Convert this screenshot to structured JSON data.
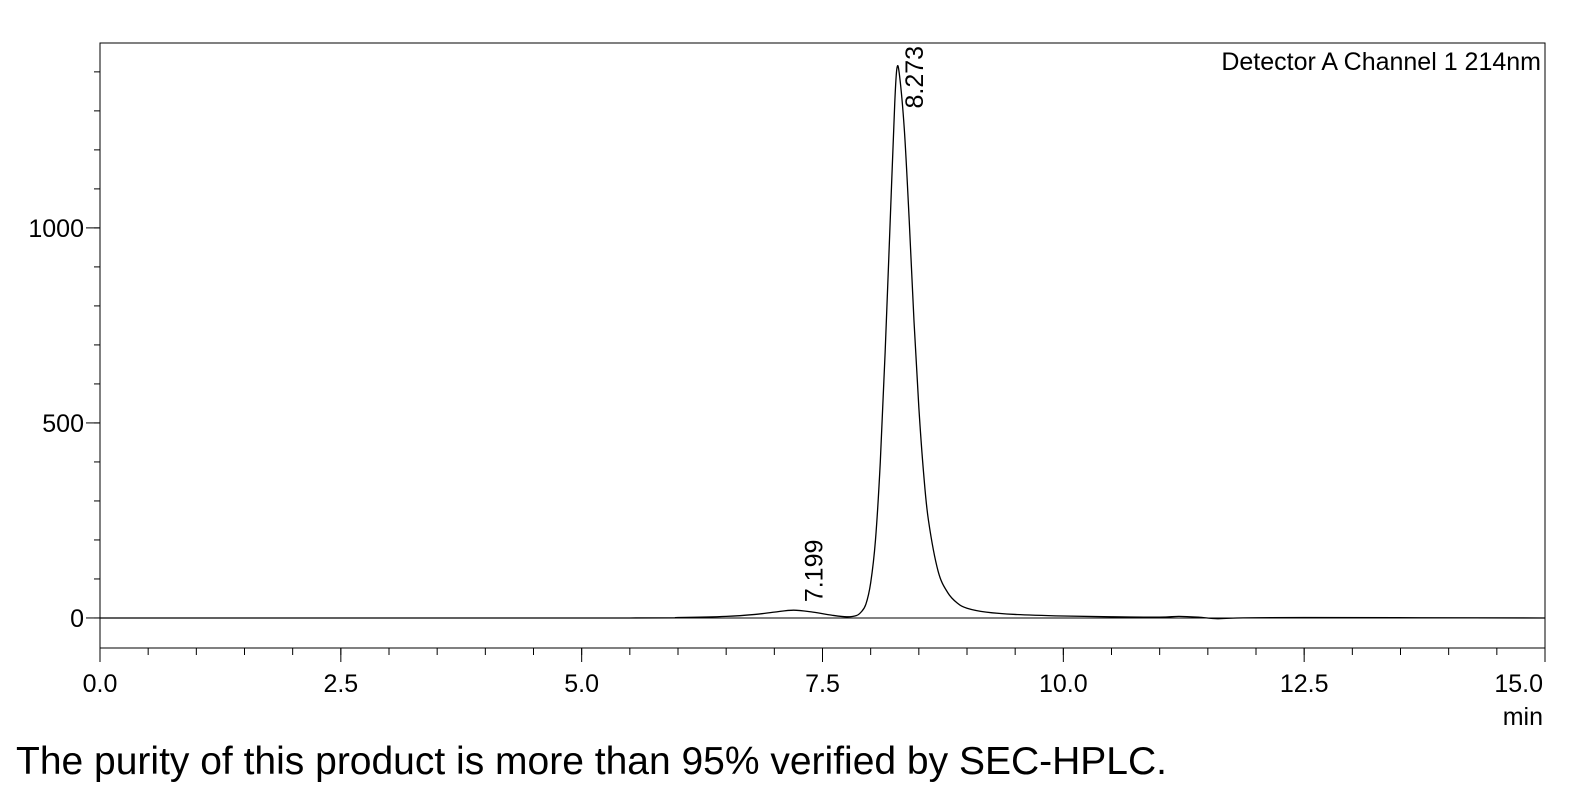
{
  "chart_data": {
    "type": "line",
    "title": "Detector A Channel 1 214nm",
    "xlabel": "min",
    "ylabel": "",
    "xlim": [
      0,
      15
    ],
    "ylim": [
      -77,
      1474
    ],
    "x_ticks": [
      "0.0",
      "2.5",
      "5.0",
      "7.5",
      "10.0",
      "12.5",
      "15.0"
    ],
    "x_tick_values": [
      0,
      2.5,
      5,
      7.5,
      10,
      12.5,
      15
    ],
    "x_minor_step": 0.5,
    "y_ticks": [
      "0",
      "500",
      "1000"
    ],
    "y_tick_values": [
      0,
      500,
      1000
    ],
    "y_minor_step": 100,
    "grid": false,
    "peak_labels": [
      {
        "label": "7.199",
        "x": 7.199,
        "y": 20
      },
      {
        "label": "8.273",
        "x": 8.273,
        "y": 1410
      }
    ],
    "series": [
      {
        "name": "Detector A Channel 1 214nm",
        "color": "#000000",
        "points": [
          [
            0,
            0
          ],
          [
            5.5,
            0
          ],
          [
            6.0,
            1
          ],
          [
            6.5,
            4
          ],
          [
            6.8,
            9
          ],
          [
            7.0,
            15
          ],
          [
            7.2,
            20
          ],
          [
            7.4,
            15
          ],
          [
            7.6,
            7
          ],
          [
            7.75,
            3
          ],
          [
            7.85,
            6
          ],
          [
            7.9,
            15
          ],
          [
            7.95,
            35
          ],
          [
            8.0,
            90
          ],
          [
            8.05,
            200
          ],
          [
            8.1,
            400
          ],
          [
            8.15,
            680
          ],
          [
            8.2,
            1000
          ],
          [
            8.25,
            1320
          ],
          [
            8.273,
            1410
          ],
          [
            8.3,
            1390
          ],
          [
            8.35,
            1250
          ],
          [
            8.4,
            1020
          ],
          [
            8.45,
            760
          ],
          [
            8.5,
            540
          ],
          [
            8.55,
            370
          ],
          [
            8.6,
            250
          ],
          [
            8.7,
            120
          ],
          [
            8.8,
            65
          ],
          [
            8.9,
            38
          ],
          [
            9.0,
            25
          ],
          [
            9.2,
            15
          ],
          [
            9.5,
            9
          ],
          [
            10,
            5
          ],
          [
            10.5,
            3
          ],
          [
            11,
            2
          ],
          [
            11.2,
            4
          ],
          [
            11.4,
            2
          ],
          [
            11.6,
            -2
          ],
          [
            11.8,
            0
          ],
          [
            12.5,
            1
          ],
          [
            15,
            0
          ]
        ]
      }
    ]
  },
  "caption": "The purity of this product is more than 95% verified by SEC-HPLC."
}
